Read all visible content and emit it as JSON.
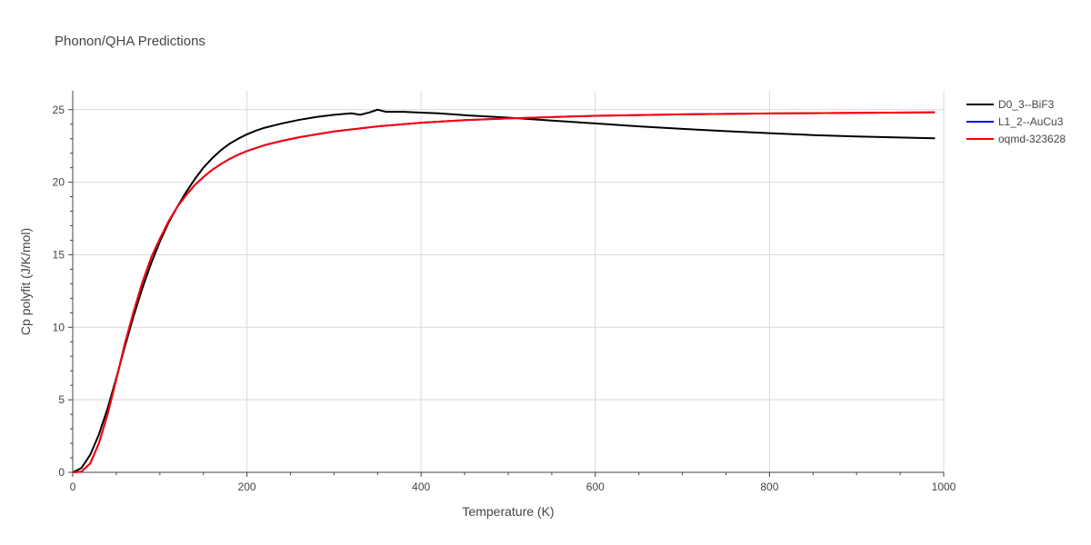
{
  "chart_data": {
    "type": "line",
    "title": "Phonon/QHA Predictions",
    "xlabel": "Temperature (K)",
    "ylabel": "Cp polyfit (J/K/mol)",
    "xlim": [
      0,
      1000
    ],
    "ylim": [
      0,
      26.3
    ],
    "xticks": [
      0,
      200,
      400,
      600,
      800,
      1000
    ],
    "yticks": [
      0,
      5,
      10,
      15,
      20,
      25
    ],
    "grid": true,
    "legend_position": "top-right",
    "series": [
      {
        "name": "D0_3--BiF3",
        "color": "#000000",
        "x": [
          0,
          10,
          20,
          30,
          40,
          50,
          60,
          70,
          80,
          90,
          100,
          110,
          120,
          130,
          140,
          150,
          160,
          170,
          180,
          190,
          200,
          210,
          220,
          240,
          260,
          280,
          300,
          320,
          330,
          340,
          350,
          360,
          380,
          400,
          420,
          450,
          500,
          550,
          600,
          650,
          700,
          750,
          800,
          850,
          900,
          950,
          990
        ],
        "y": [
          0,
          0.3,
          1.2,
          2.6,
          4.4,
          6.5,
          8.7,
          10.8,
          12.7,
          14.4,
          15.9,
          17.2,
          18.3,
          19.3,
          20.2,
          21.0,
          21.65,
          22.2,
          22.65,
          23.0,
          23.3,
          23.55,
          23.75,
          24.05,
          24.3,
          24.5,
          24.65,
          24.75,
          24.65,
          24.8,
          25.0,
          24.85,
          24.85,
          24.8,
          24.75,
          24.62,
          24.45,
          24.25,
          24.05,
          23.85,
          23.68,
          23.52,
          23.38,
          23.25,
          23.15,
          23.08,
          23.03
        ]
      },
      {
        "name": "L1_2--AuCu3",
        "color": "#0000ff",
        "x": [
          0,
          10,
          20,
          30,
          40,
          50,
          60,
          70,
          80,
          90,
          100,
          110,
          120,
          130,
          140,
          150,
          160,
          170,
          180,
          190,
          200,
          220,
          240,
          260,
          280,
          300,
          350,
          400,
          450,
          500,
          600,
          700,
          800,
          900,
          990
        ],
        "y": [
          0,
          0.05,
          0.6,
          2.0,
          4.0,
          6.4,
          8.9,
          11.1,
          13.1,
          14.8,
          16.1,
          17.3,
          18.3,
          19.1,
          19.8,
          20.35,
          20.85,
          21.25,
          21.6,
          21.9,
          22.15,
          22.55,
          22.85,
          23.1,
          23.3,
          23.5,
          23.85,
          24.1,
          24.28,
          24.4,
          24.58,
          24.68,
          24.74,
          24.78,
          24.82
        ]
      },
      {
        "name": "oqmd-323628",
        "color": "#ff0000",
        "x": [
          0,
          10,
          20,
          30,
          40,
          50,
          60,
          70,
          80,
          90,
          100,
          110,
          120,
          130,
          140,
          150,
          160,
          170,
          180,
          190,
          200,
          220,
          240,
          260,
          280,
          300,
          350,
          400,
          450,
          500,
          600,
          700,
          800,
          900,
          990
        ],
        "y": [
          0,
          0.05,
          0.6,
          2.0,
          4.0,
          6.4,
          8.9,
          11.1,
          13.1,
          14.8,
          16.1,
          17.3,
          18.3,
          19.1,
          19.8,
          20.35,
          20.85,
          21.25,
          21.6,
          21.9,
          22.15,
          22.55,
          22.85,
          23.1,
          23.3,
          23.5,
          23.85,
          24.1,
          24.28,
          24.4,
          24.58,
          24.68,
          24.74,
          24.78,
          24.82
        ]
      }
    ]
  }
}
